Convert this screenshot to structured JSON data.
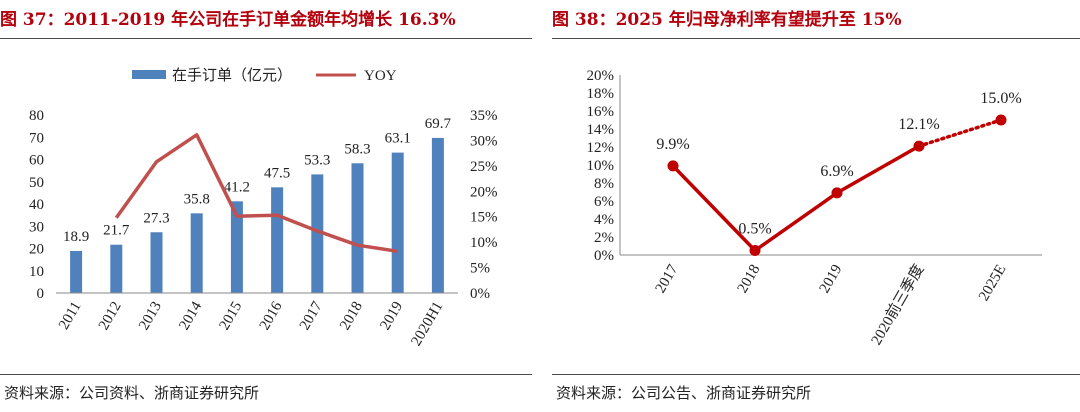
{
  "left_panel": {
    "title": "图 37：2011-2019 年公司在手订单金额年均增长 16.3%",
    "source": "资料来源：公司资料、浙商证券研究所"
  },
  "right_panel": {
    "title": "图 38：2025 年归母净利率有望提升至 15%",
    "source": "资料来源：公司公告、浙商证券研究所"
  },
  "colors": {
    "title_red": "#b3000c",
    "bar_blue": "#4f81bd",
    "yoy_line": "#c0504d",
    "margin_line": "#c00000"
  },
  "chart_data": [
    {
      "type": "bar",
      "title": "图 37：2011-2019 年公司在手订单金额年均增长 16.3%",
      "categories": [
        "2011",
        "2012",
        "2013",
        "2014",
        "2015",
        "2016",
        "2017",
        "2018",
        "2019",
        "2020H1"
      ],
      "series": [
        {
          "name": "在手订单（亿元）",
          "type": "bar",
          "axis": "left",
          "values": [
            18.9,
            21.7,
            27.3,
            35.8,
            41.2,
            47.5,
            53.3,
            58.3,
            63.1,
            69.7
          ],
          "labels": [
            "18.9",
            "21.7",
            "27.3",
            "35.8",
            "41.2",
            "47.5",
            "53.3",
            "58.3",
            "63.1",
            "69.7"
          ]
        },
        {
          "name": "YOY",
          "type": "line",
          "axis": "right",
          "values": [
            null,
            14.8,
            25.8,
            31.1,
            15.1,
            15.3,
            12.2,
            9.4,
            8.2,
            null
          ]
        }
      ],
      "y_left": {
        "ylim": [
          0,
          80
        ],
        "ticks": [
          "0",
          "10",
          "20",
          "30",
          "40",
          "50",
          "60",
          "70",
          "80"
        ]
      },
      "y_right": {
        "ylim": [
          0,
          35
        ],
        "ticks": [
          "0%",
          "5%",
          "10%",
          "15%",
          "20%",
          "25%",
          "30%",
          "35%"
        ]
      },
      "legend_position": "top"
    },
    {
      "type": "line",
      "title": "图 38：2025 年归母净利率有望提升至 15%",
      "categories": [
        "2017",
        "2018",
        "2019",
        "2020前三季度",
        "2025E"
      ],
      "series": [
        {
          "name": "归母净利率",
          "values": [
            9.9,
            0.5,
            6.9,
            12.1,
            15.0
          ],
          "labels": [
            "9.9%",
            "0.5%",
            "6.9%",
            "12.1%",
            "15.0%"
          ],
          "forecast_from_index": 3
        }
      ],
      "y": {
        "ylim": [
          0,
          20
        ],
        "ticks": [
          "0%",
          "2%",
          "4%",
          "6%",
          "8%",
          "10%",
          "12%",
          "14%",
          "16%",
          "18%",
          "20%"
        ]
      }
    }
  ]
}
